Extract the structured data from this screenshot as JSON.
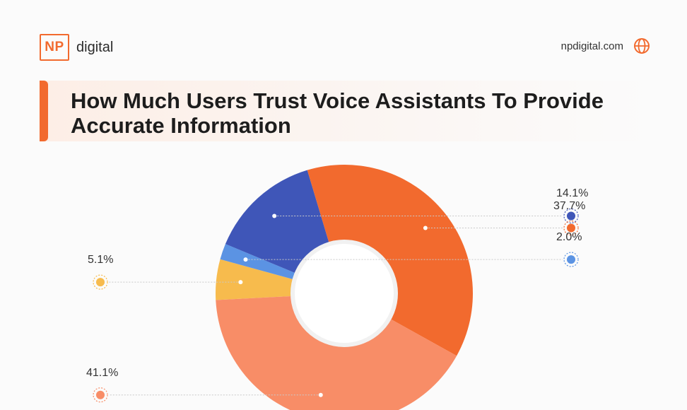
{
  "header": {
    "logo_mark": "NP",
    "logo_word": "digital",
    "site": "npdigital.com",
    "globe_icon": "globe-icon",
    "accent_color": "#f26a2e"
  },
  "title": "How Much Users Trust Voice Assistants To Provide Accurate Information",
  "chart_data": {
    "type": "pie",
    "style": "donut",
    "title": "How Much Users Trust Voice Assistants To Provide Accurate Information",
    "legend": "none",
    "slices": [
      {
        "value": 5.1,
        "label": "5.1%",
        "color": "#f7bb4d"
      },
      {
        "value": 2.0,
        "label": "2.0%",
        "color": "#5b93e3"
      },
      {
        "value": 14.1,
        "label": "14.1%",
        "color": "#3f56b8"
      },
      {
        "value": 37.7,
        "label": "37.7%",
        "color": "#f26a2e"
      },
      {
        "value": 41.1,
        "label": "41.1%",
        "color": "#f88d67"
      }
    ]
  }
}
